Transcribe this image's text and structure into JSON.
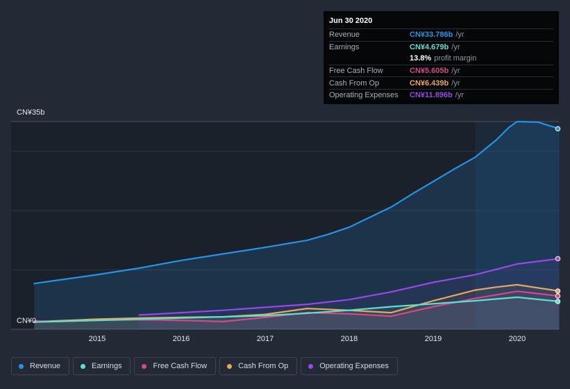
{
  "chart_data": {
    "type": "area",
    "y_unit": "CN¥b",
    "ylim": [
      0,
      35
    ],
    "y_tick_labels": [
      "CN¥35b",
      "CN¥0"
    ],
    "xlim": [
      2014.25,
      2020.5
    ],
    "x_tick_values": [
      2015,
      2016,
      2017,
      2018,
      2019,
      2020
    ],
    "x_tick_labels": [
      "2015",
      "2016",
      "2017",
      "2018",
      "2019",
      "2020"
    ],
    "forecast_shade_start": 2019.5,
    "series": [
      {
        "name": "Revenue",
        "key": "revenue",
        "color": "#2394e8",
        "x": [
          2014.25,
          2014.5,
          2015.0,
          2015.5,
          2016.0,
          2016.5,
          2017.0,
          2017.25,
          2017.5,
          2017.75,
          2018.0,
          2018.25,
          2018.5,
          2018.75,
          2019.0,
          2019.25,
          2019.5,
          2019.75,
          2019.9,
          2020.0,
          2020.25,
          2020.5
        ],
        "values": [
          7.7,
          8.2,
          9.2,
          10.3,
          11.6,
          12.7,
          13.8,
          14.4,
          15.0,
          16.0,
          17.2,
          18.9,
          20.6,
          22.8,
          24.9,
          27.0,
          29.0,
          31.9,
          34.0,
          35.0,
          34.9,
          33.786
        ]
      },
      {
        "name": "Earnings",
        "key": "earnings",
        "color": "#5ee0d1",
        "x": [
          2014.25,
          2015.0,
          2016.0,
          2017.0,
          2017.5,
          2018.0,
          2018.5,
          2019.0,
          2019.5,
          2019.75,
          2020.0,
          2020.5
        ],
        "values": [
          1.2,
          1.5,
          1.9,
          2.3,
          2.7,
          3.2,
          3.8,
          4.3,
          4.8,
          5.1,
          5.4,
          4.679
        ]
      },
      {
        "name": "Free Cash Flow",
        "key": "fcf",
        "color": "#d4488c",
        "x": [
          2014.25,
          2014.5,
          2015.0,
          2015.5,
          2016.0,
          2016.5,
          2017.0,
          2017.5,
          2018.0,
          2018.5,
          2019.0,
          2019.5,
          2020.0,
          2020.5
        ],
        "values": [
          1.4,
          1.3,
          1.5,
          1.6,
          1.5,
          1.3,
          2.0,
          2.8,
          2.6,
          2.2,
          3.8,
          5.2,
          6.4,
          5.605
        ]
      },
      {
        "name": "Cash From Op",
        "key": "cfo",
        "color": "#e8a85a",
        "x": [
          2014.25,
          2014.5,
          2015.0,
          2015.5,
          2016.0,
          2016.5,
          2017.0,
          2017.5,
          2018.0,
          2018.5,
          2019.0,
          2019.5,
          2019.75,
          2020.0,
          2020.5
        ],
        "values": [
          1.3,
          1.4,
          1.7,
          1.9,
          2.0,
          2.1,
          2.5,
          3.5,
          3.2,
          2.8,
          4.8,
          6.6,
          7.1,
          7.5,
          6.439
        ]
      },
      {
        "name": "Operating Expenses",
        "key": "opex",
        "color": "#9748e8",
        "x": [
          2015.5,
          2016.0,
          2016.5,
          2017.0,
          2017.5,
          2018.0,
          2018.5,
          2019.0,
          2019.5,
          2020.0,
          2020.5
        ],
        "values": [
          2.4,
          2.8,
          3.2,
          3.7,
          4.2,
          5.0,
          6.3,
          7.9,
          9.2,
          11.0,
          11.896
        ]
      }
    ]
  },
  "tooltip": {
    "date": "Jun 30 2020",
    "rows": [
      {
        "label": "Revenue",
        "value": "CN¥33.786b",
        "unit": "/yr",
        "color": "#2394e8"
      },
      {
        "label": "Earnings",
        "value": "CN¥4.679b",
        "unit": "/yr",
        "color": "#5ee0d1"
      },
      {
        "label": "",
        "value": "13.8%",
        "unit": "profit margin",
        "color": "#ffffff"
      },
      {
        "label": "Free Cash Flow",
        "value": "CN¥5.605b",
        "unit": "/yr",
        "color": "#d4488c"
      },
      {
        "label": "Cash From Op",
        "value": "CN¥6.439b",
        "unit": "/yr",
        "color": "#e8a85a"
      },
      {
        "label": "Operating Expenses",
        "value": "CN¥11.896b",
        "unit": "/yr",
        "color": "#9748e8"
      }
    ]
  },
  "legend": [
    {
      "label": "Revenue",
      "color": "#2394e8"
    },
    {
      "label": "Earnings",
      "color": "#5ee0d1"
    },
    {
      "label": "Free Cash Flow",
      "color": "#d4488c"
    },
    {
      "label": "Cash From Op",
      "color": "#e8a85a"
    },
    {
      "label": "Operating Expenses",
      "color": "#9748e8"
    }
  ]
}
